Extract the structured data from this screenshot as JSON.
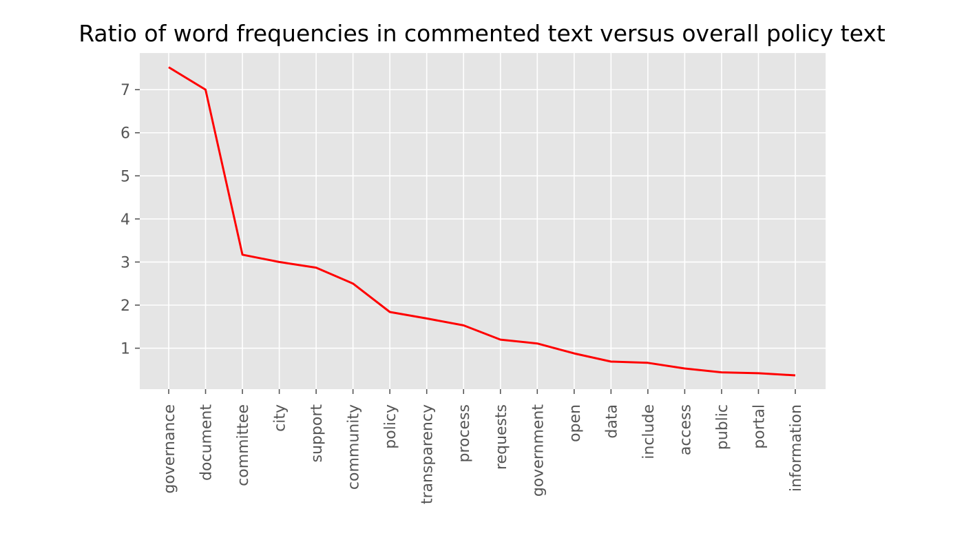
{
  "chart_data": {
    "type": "line",
    "title": "Ratio of word frequencies in commented text versus overall policy text",
    "xlabel": "",
    "ylabel": "",
    "categories": [
      "governance",
      "document",
      "committee",
      "city",
      "support",
      "community",
      "policy",
      "transparency",
      "process",
      "requests",
      "government",
      "open",
      "data",
      "include",
      "access",
      "public",
      "portal",
      "information"
    ],
    "series": [
      {
        "values": [
          7.52,
          7.0,
          3.17,
          3.0,
          2.87,
          2.5,
          1.84,
          1.69,
          1.53,
          1.2,
          1.11,
          0.88,
          0.69,
          0.66,
          0.53,
          0.44,
          0.42,
          0.37
        ],
        "color": "#ff0000"
      }
    ],
    "yticks": [
      1,
      2,
      3,
      4,
      5,
      6,
      7
    ],
    "ylim": [
      0.05,
      7.85
    ],
    "grid": true,
    "legend": "none",
    "style": {
      "background": "#e5e5e5",
      "grid_color": "#ffffff",
      "tick_color": "#555555"
    }
  }
}
